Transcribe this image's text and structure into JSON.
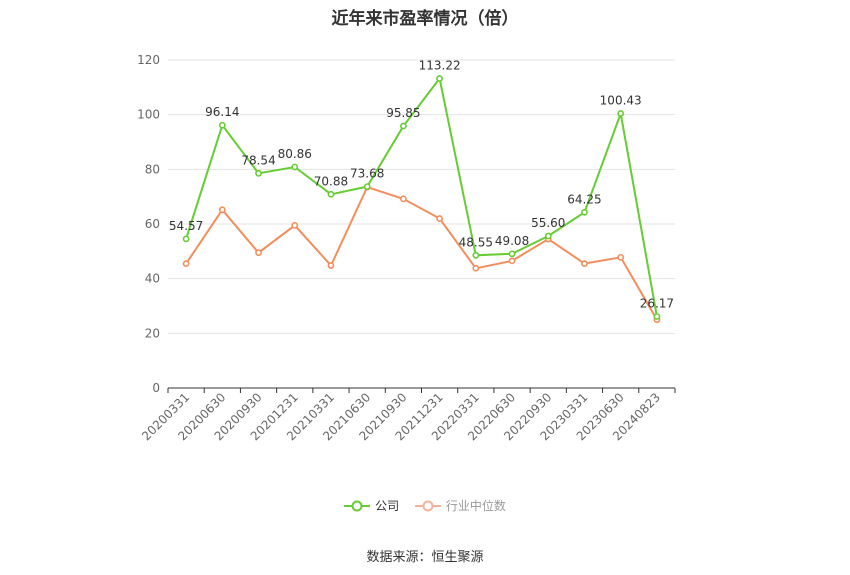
{
  "chart_data": {
    "type": "line",
    "title": "近年来市盈率情况（倍）",
    "categories": [
      "20200331",
      "20200630",
      "20200930",
      "20201231",
      "20210331",
      "20210630",
      "20210930",
      "20211231",
      "20220331",
      "20220630",
      "20220930",
      "20230331",
      "20230630",
      "20240823"
    ],
    "series": [
      {
        "name": "公司",
        "color": "#66cc33",
        "values": [
          54.57,
          96.14,
          78.54,
          80.86,
          70.88,
          73.68,
          95.85,
          113.22,
          48.55,
          49.08,
          55.6,
          64.25,
          100.43,
          26.17
        ],
        "labels": [
          "54.57",
          "96.14",
          "78.54",
          "80.86",
          "70.88",
          "73.68",
          "95.85",
          "113.22",
          "48.55",
          "49.08",
          "55.60",
          "64.25",
          "100.43",
          "26.17"
        ]
      },
      {
        "name": "行业中位数",
        "color": "#f28e5c",
        "values": [
          45.5,
          65.2,
          49.5,
          59.5,
          44.8,
          73.5,
          69.2,
          62.0,
          43.8,
          46.5,
          54.5,
          45.5,
          47.8,
          25.0
        ]
      }
    ],
    "yticks": [
      0,
      20,
      40,
      60,
      80,
      100,
      120
    ],
    "ylim": [
      0,
      120
    ],
    "grid": true,
    "legend": "bottom"
  },
  "source": "数据来源：恒生聚源"
}
